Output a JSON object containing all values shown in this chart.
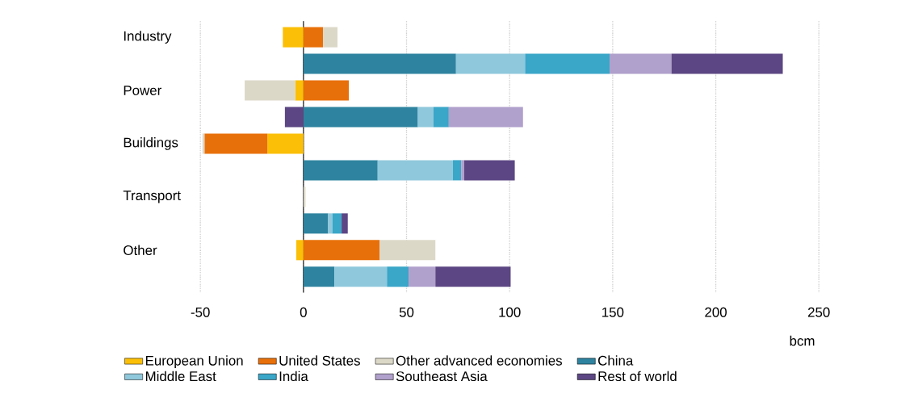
{
  "chart_data": {
    "type": "bar",
    "orientation": "horizontal",
    "stacked": true,
    "categories": [
      "Industry",
      null,
      "Power",
      null,
      "Buildings",
      null,
      "Transport",
      null,
      "Other",
      null
    ],
    "series": [
      {
        "name": "European Union",
        "color": "#fbbf07",
        "values": [
          -10,
          null,
          -4,
          null,
          -17.5,
          null,
          null,
          null,
          -3.5,
          null
        ]
      },
      {
        "name": "United States",
        "color": "#e8700a",
        "values": [
          9.5,
          null,
          22,
          null,
          -30.5,
          null,
          null,
          null,
          37,
          null
        ]
      },
      {
        "name": "Other advanced economies",
        "color": "#dcd8c8",
        "values": [
          7,
          null,
          -24.5,
          null,
          -1,
          null,
          1,
          null,
          27,
          null
        ]
      },
      {
        "name": "China",
        "color": "#2e83a0",
        "values": [
          null,
          74,
          null,
          55.5,
          null,
          36,
          null,
          12,
          null,
          15
        ]
      },
      {
        "name": "Middle East",
        "color": "#8fc8dc",
        "values": [
          null,
          33.5,
          null,
          7.5,
          null,
          36.5,
          null,
          2,
          null,
          25.5
        ]
      },
      {
        "name": "India",
        "color": "#3aa6c8",
        "values": [
          null,
          41,
          null,
          7.5,
          null,
          4,
          null,
          4.5,
          null,
          10.5
        ]
      },
      {
        "name": "Southeast Asia",
        "color": "#b0a0cc",
        "values": [
          null,
          30,
          null,
          36,
          null,
          1.5,
          null,
          null,
          null,
          13
        ]
      },
      {
        "name": "Rest of world",
        "color": "#5c4683",
        "values": [
          null,
          54,
          null,
          -9,
          null,
          24.5,
          null,
          3,
          null,
          36.5
        ]
      }
    ],
    "xlim": [
      -50,
      250
    ],
    "xticks": [
      -50,
      0,
      50,
      100,
      150,
      200,
      250
    ],
    "xlabel": "bcm",
    "grid": "x",
    "legend": "bottom"
  }
}
